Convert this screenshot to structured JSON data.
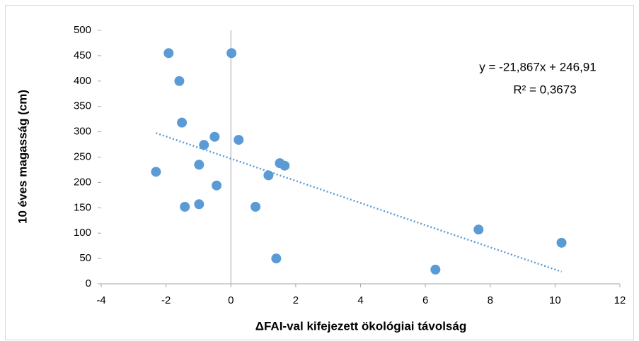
{
  "chart_data": {
    "type": "scatter",
    "xlabel": "ΔFAI-val kifejezett ökológiai távolság",
    "ylabel": "10 éves magasság (cm)",
    "color": "#5b9bd5",
    "x": [
      -1.92,
      0.02,
      -1.59,
      -1.51,
      -0.5,
      -0.83,
      0.24,
      -2.31,
      -0.98,
      1.51,
      1.66,
      1.16,
      -0.44,
      -1.42,
      -0.98,
      0.76,
      1.4,
      6.31,
      7.64,
      10.2
    ],
    "values": [
      455,
      455,
      400,
      318,
      290,
      274,
      284,
      221,
      235,
      238,
      233,
      214,
      194,
      152,
      157,
      152,
      50,
      28,
      107,
      81
    ],
    "xlim": [
      -4,
      12
    ],
    "xticks": [
      -4,
      -2,
      0,
      2,
      4,
      6,
      8,
      10,
      12
    ],
    "ylim": [
      0,
      500
    ],
    "yticks": [
      0,
      50,
      100,
      150,
      200,
      250,
      300,
      350,
      400,
      450,
      500
    ],
    "grid": false,
    "trendline": {
      "slope": -21.867,
      "intercept": 246.91,
      "equation": "y = -21,867x + 246,91",
      "r_squared": "R² = 0,3673"
    }
  }
}
